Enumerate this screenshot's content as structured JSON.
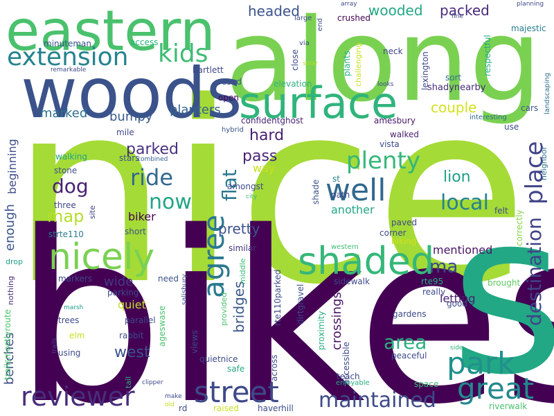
{
  "words": [
    {
      "text": "nice",
      "color": "#a5db36"
    },
    {
      "text": "bikes",
      "color": "#440154"
    },
    {
      "text": "s",
      "color": "#22a884"
    },
    {
      "text": "along",
      "color": "#7ad151"
    },
    {
      "text": "woods",
      "color": "#3b528b"
    },
    {
      "text": "eastern",
      "color": "#4ac16d"
    },
    {
      "text": "surface",
      "color": "#2fb47c"
    },
    {
      "text": "shaded",
      "color": "#35b779"
    },
    {
      "text": "nicely",
      "color": "#7ad151"
    },
    {
      "text": "reviewer",
      "color": "#472d7b"
    },
    {
      "text": "street",
      "color": "#3e4989"
    },
    {
      "text": "park",
      "color": "#21918c"
    },
    {
      "text": "great",
      "color": "#23898e"
    },
    {
      "text": "maintained",
      "color": "#3e4989"
    },
    {
      "text": "well",
      "color": "#31688e"
    },
    {
      "text": "extension",
      "color": "#25838e"
    },
    {
      "text": "kids",
      "color": "#3fbc73"
    },
    {
      "text": "agree",
      "color": "#2a788e"
    },
    {
      "text": "destination",
      "color": "#404387"
    },
    {
      "text": "place",
      "color": "#414487"
    },
    {
      "text": "plenty",
      "color": "#35b779"
    },
    {
      "text": "local",
      "color": "#26828e"
    },
    {
      "text": "area",
      "color": "#2ab07f"
    },
    {
      "text": "ride",
      "color": "#31688e"
    },
    {
      "text": "now",
      "color": "#21a585"
    },
    {
      "text": "dog",
      "color": "#482173"
    },
    {
      "text": "map",
      "color": "#b5de2b"
    },
    {
      "text": "flat",
      "color": "#2a788e"
    },
    {
      "text": "pretty",
      "color": "#3b528b"
    },
    {
      "text": "ma",
      "color": "#3e4a89"
    },
    {
      "text": "west",
      "color": "#3b528b"
    },
    {
      "text": "bridges",
      "color": "#39568c"
    },
    {
      "text": "crossings",
      "color": "#481467"
    },
    {
      "text": "benches",
      "color": "#3e4a89"
    },
    {
      "text": "hard",
      "color": "#481f70"
    },
    {
      "text": "pass",
      "color": "#482576"
    },
    {
      "text": "lion",
      "color": "#1f9e89"
    },
    {
      "text": "couple",
      "color": "#d2e21b"
    },
    {
      "text": "parked",
      "color": "#46327e"
    },
    {
      "text": "planters",
      "color": "#33638d"
    },
    {
      "text": "bumpy",
      "color": "#38588c"
    },
    {
      "text": "marked",
      "color": "#2c728e"
    },
    {
      "text": "headed",
      "color": "#3b528b"
    },
    {
      "text": "wooded",
      "color": "#22a884"
    },
    {
      "text": "packed",
      "color": "#482878"
    },
    {
      "text": "enough",
      "color": "#3b528b"
    },
    {
      "text": "beginning",
      "color": "#3e4c8a"
    },
    {
      "text": "wide",
      "color": "#443983"
    },
    {
      "text": "biker",
      "color": "#440154"
    },
    {
      "text": "quiet",
      "color": "#c2df23"
    },
    {
      "text": "way",
      "color": "#c8e020"
    },
    {
      "text": "another",
      "color": "#21a685"
    },
    {
      "text": "mentioned",
      "color": "#471365"
    },
    {
      "text": "letting",
      "color": "#482173"
    },
    {
      "text": "minuteman",
      "color": "#3b528b"
    },
    {
      "text": "access",
      "color": "#2eb37c"
    },
    {
      "text": "bartlett",
      "color": "#404588"
    },
    {
      "text": "used",
      "color": "#3b528b"
    },
    {
      "text": "open",
      "color": "#440154"
    },
    {
      "text": "confidentghost",
      "color": "#482475"
    },
    {
      "text": "elevation",
      "color": "#2fb47c"
    },
    {
      "text": "lexington",
      "color": "#3e4a89"
    },
    {
      "text": "shadynearby",
      "color": "#472c7a"
    },
    {
      "text": "crushed",
      "color": "#440154"
    },
    {
      "text": "plants",
      "color": "#26ad81"
    },
    {
      "text": "neck",
      "color": "#404588"
    },
    {
      "text": "sort",
      "color": "#2d708e"
    },
    {
      "text": "respectful",
      "color": "#25ab82"
    },
    {
      "text": "majestic",
      "color": "#287d8e"
    },
    {
      "text": "amesbury",
      "color": "#481668"
    },
    {
      "text": "walked",
      "color": "#481f70"
    },
    {
      "text": "vista",
      "color": "#3e4989"
    },
    {
      "text": "path",
      "color": "#3e4a89"
    },
    {
      "text": "st",
      "color": "#26828e"
    },
    {
      "text": "shade",
      "color": "#3b528b"
    },
    {
      "text": "amongst",
      "color": "#3e4989"
    },
    {
      "text": "similar",
      "color": "#46337f"
    },
    {
      "text": "paved",
      "color": "#3e4989"
    },
    {
      "text": "corner",
      "color": "#3e4a89"
    },
    {
      "text": "biking",
      "color": "#d0e11c"
    },
    {
      "text": "felt",
      "color": "#3e4a89"
    },
    {
      "text": "correctly",
      "color": "#84d44b"
    },
    {
      "text": "cars",
      "color": "#3b528b"
    },
    {
      "text": "use",
      "color": "#3e4c8a"
    },
    {
      "text": "neighbor",
      "color": "#2c728e"
    },
    {
      "text": "landscaping",
      "color": "#2e6f8e"
    },
    {
      "text": "interesting",
      "color": "#30698e"
    },
    {
      "text": "walking",
      "color": "#20a486"
    },
    {
      "text": "stars",
      "color": "#3b528b"
    },
    {
      "text": "stone",
      "color": "#3e4c8a"
    },
    {
      "text": "three",
      "color": "#3f4788"
    },
    {
      "text": "site",
      "color": "#404588"
    },
    {
      "text": "strte110",
      "color": "#287c8e"
    },
    {
      "text": "short",
      "color": "#3b528b"
    },
    {
      "text": "mile",
      "color": "#3e4989"
    },
    {
      "text": "combined",
      "color": "#34608d"
    },
    {
      "text": "hybrid",
      "color": "#3b528b"
    },
    {
      "text": "city",
      "color": "#3fbc73"
    },
    {
      "text": "drop",
      "color": "#1fa088"
    },
    {
      "text": "nothing",
      "color": "#472c7a"
    },
    {
      "text": "trailsmostlyroute",
      "color": "#4ac16d"
    },
    {
      "text": "markers",
      "color": "#3e4a89"
    },
    {
      "text": "need",
      "color": "#3b528b"
    },
    {
      "text": "parking",
      "color": "#3e4a89"
    },
    {
      "text": "trees",
      "color": "#3e4989"
    },
    {
      "text": "parallel",
      "color": "#3e4989"
    },
    {
      "text": "rabbit",
      "color": "#3e4a89"
    },
    {
      "text": "using",
      "color": "#3e4a89"
    },
    {
      "text": "elm",
      "color": "#c8e020"
    },
    {
      "text": "marsh",
      "color": "#1f9e89"
    },
    {
      "text": "trails",
      "color": "#414487"
    },
    {
      "text": "tail",
      "color": "#2ab07f"
    },
    {
      "text": "ageswase",
      "color": "#4ac16d"
    },
    {
      "text": "views",
      "color": "#3e4a89"
    },
    {
      "text": "salisbury",
      "color": "#3e4989"
    },
    {
      "text": "provided",
      "color": "#4ac16d"
    },
    {
      "text": "middle",
      "color": "#3fbc73"
    },
    {
      "text": "quietnice",
      "color": "#3e4a89"
    },
    {
      "text": "safe",
      "color": "#25ab82"
    },
    {
      "text": "across",
      "color": "#3e4989"
    },
    {
      "text": "rte110parked",
      "color": "#3e4a89"
    },
    {
      "text": "dirtgravel",
      "color": "#3e4a89"
    },
    {
      "text": "proximity",
      "color": "#2ab07f"
    },
    {
      "text": "accessible",
      "color": "#3e4a89"
    },
    {
      "text": "teach",
      "color": "#3e4a89"
    },
    {
      "text": "enjoyable",
      "color": "#26ad81"
    },
    {
      "text": "sidewalk",
      "color": "#3e4a89"
    },
    {
      "text": "rte95",
      "color": "#26ad81"
    },
    {
      "text": "really",
      "color": "#3e4a89"
    },
    {
      "text": "good",
      "color": "#3e4a89"
    },
    {
      "text": "brought",
      "color": "#5ec962"
    },
    {
      "text": "gardens",
      "color": "#3e4a89"
    },
    {
      "text": "western",
      "color": "#3fbc73"
    },
    {
      "text": "peaceful",
      "color": "#3e4a89"
    },
    {
      "text": "side",
      "color": "#2fb47c"
    },
    {
      "text": "space",
      "color": "#3fbc73"
    },
    {
      "text": "riverwalk",
      "color": "#4ac16d"
    },
    {
      "text": "raised",
      "color": "#c8e020"
    },
    {
      "text": "haverhill",
      "color": "#3e4a89"
    },
    {
      "text": "rd",
      "color": "#3e4a89"
    },
    {
      "text": "make",
      "color": "#3e4a89"
    },
    {
      "text": "old",
      "color": "#c8e020"
    },
    {
      "text": "clipper",
      "color": "#3e4a89"
    },
    {
      "text": "remarkable",
      "color": "#3e4a89"
    },
    {
      "text": "large",
      "color": "#3e4a89"
    },
    {
      "text": "array",
      "color": "#3e4a89"
    },
    {
      "text": "via",
      "color": "#3e4a89"
    },
    {
      "text": "close",
      "color": "#3e4a89"
    },
    {
      "text": "end",
      "color": "#3e4a89"
    },
    {
      "text": "solar",
      "color": "#b5de2b"
    },
    {
      "text": "challenging",
      "color": "#c8e020"
    },
    {
      "text": "looks",
      "color": "#3e4a89"
    },
    {
      "text": "fine",
      "color": "#3e4a89"
    },
    {
      "text": "planning",
      "color": "#3e4a89"
    }
  ]
}
